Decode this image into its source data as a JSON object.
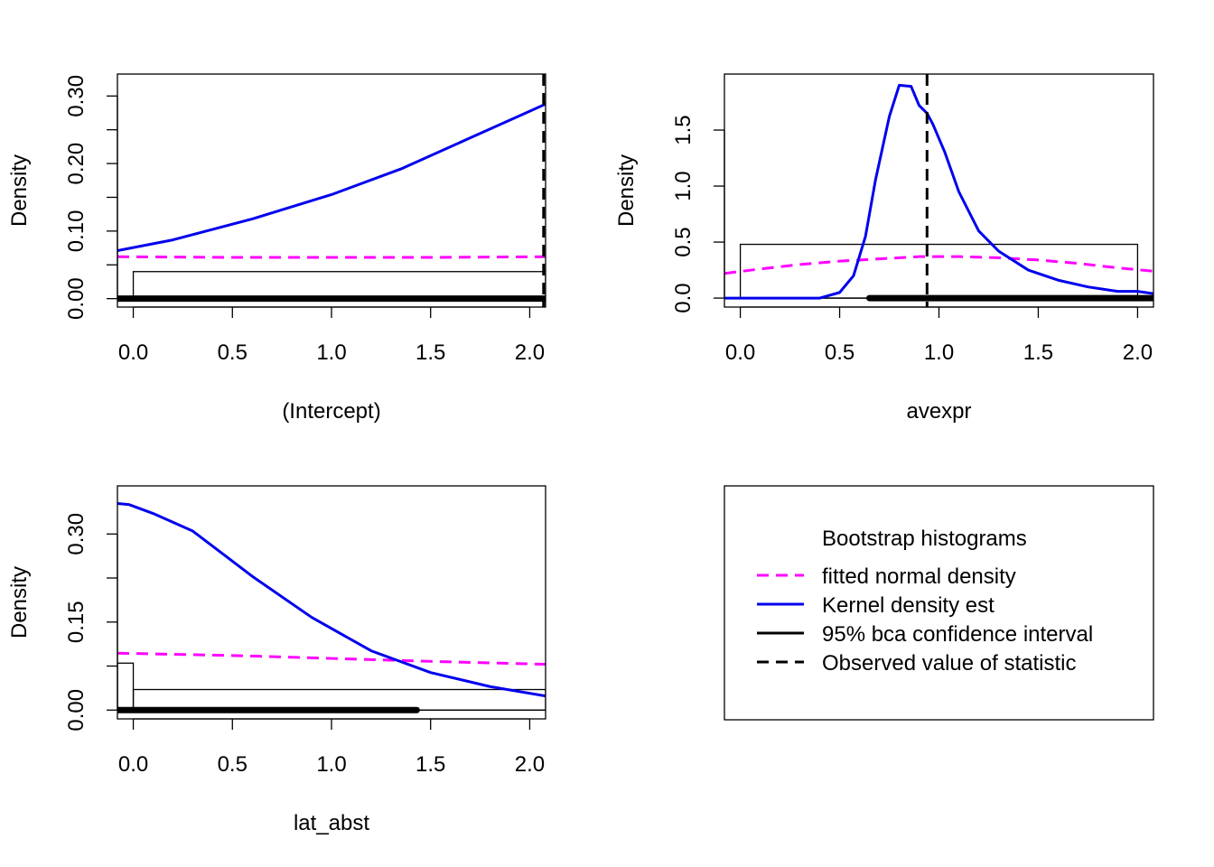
{
  "colors": {
    "normal": "#ff00ff",
    "kernel": "#0000ee",
    "ci": "#000000",
    "observed": "#000000",
    "frame": "#000000"
  },
  "chart_data": [
    {
      "type": "line",
      "xlabel": "(Intercept)",
      "ylabel": "Density",
      "xlim": [
        -0.08,
        2.08
      ],
      "ylim": [
        -0.0125,
        0.3325
      ],
      "xticks": [
        0.0,
        0.5,
        1.0,
        1.5,
        2.0
      ],
      "xtick_labels": [
        "0.0",
        "0.5",
        "1.0",
        "1.5",
        "2.0"
      ],
      "yticks": [
        0.0,
        0.05,
        0.1,
        0.15,
        0.2,
        0.25,
        0.3
      ],
      "ytick_labels": [
        "0.00",
        "",
        "0.10",
        "",
        "0.20",
        "",
        "0.30"
      ],
      "histogram": [
        {
          "x0": -0.08,
          "x1": 0.0,
          "density": 0.0
        },
        {
          "x0": 0.0,
          "x1": 2.08,
          "density": 0.04
        }
      ],
      "series": [
        {
          "name": "Kernel density est",
          "x": [
            -0.08,
            0.2,
            0.6,
            1.0,
            1.35,
            1.7,
            2.08
          ],
          "y": [
            0.071,
            0.087,
            0.118,
            0.154,
            0.192,
            0.238,
            0.288
          ]
        },
        {
          "name": "fitted normal density",
          "x": [
            -0.08,
            0.5,
            1.0,
            1.5,
            2.08
          ],
          "y": [
            0.062,
            0.061,
            0.061,
            0.061,
            0.062
          ]
        }
      ],
      "ci": [
        -0.08,
        2.08
      ],
      "observed": 2.07
    },
    {
      "type": "line",
      "xlabel": "avexpr",
      "ylabel": "Density",
      "xlim": [
        -0.08,
        2.08
      ],
      "ylim": [
        -0.08,
        2.0
      ],
      "xticks": [
        0.0,
        0.5,
        1.0,
        1.5,
        2.0
      ],
      "xtick_labels": [
        "0.0",
        "0.5",
        "1.0",
        "1.5",
        "2.0"
      ],
      "yticks": [
        0.0,
        0.5,
        1.0,
        1.5
      ],
      "ytick_labels": [
        "0.0",
        "0.5",
        "1.0",
        "1.5"
      ],
      "histogram": [
        {
          "x0": 0.0,
          "x1": 2.0,
          "density": 0.48
        }
      ],
      "series": [
        {
          "name": "Kernel density est",
          "x": [
            -0.08,
            0.2,
            0.4,
            0.5,
            0.57,
            0.63,
            0.68,
            0.75,
            0.8,
            0.86,
            0.9,
            0.94,
            0.97,
            1.03,
            1.1,
            1.2,
            1.3,
            1.45,
            1.6,
            1.75,
            1.9,
            2.0,
            2.08
          ],
          "y": [
            0.0,
            0.0,
            0.0,
            0.05,
            0.2,
            0.55,
            1.05,
            1.62,
            1.9,
            1.89,
            1.72,
            1.65,
            1.55,
            1.3,
            0.95,
            0.6,
            0.42,
            0.25,
            0.16,
            0.1,
            0.06,
            0.06,
            0.04
          ]
        },
        {
          "name": "fitted normal density",
          "x": [
            -0.08,
            0.1,
            0.3,
            0.5,
            0.7,
            0.9,
            1.1,
            1.3,
            1.5,
            1.7,
            1.9,
            2.08
          ],
          "y": [
            0.22,
            0.26,
            0.3,
            0.33,
            0.35,
            0.37,
            0.37,
            0.36,
            0.34,
            0.31,
            0.27,
            0.24
          ]
        }
      ],
      "ci": [
        0.65,
        2.08
      ],
      "observed": 0.94
    },
    {
      "type": "line",
      "xlabel": "lat_abst",
      "ylabel": "Density",
      "xlim": [
        -0.08,
        2.08
      ],
      "ylim": [
        -0.015,
        0.382
      ],
      "xticks": [
        0.0,
        0.5,
        1.0,
        1.5,
        2.0
      ],
      "xtick_labels": [
        "0.0",
        "0.5",
        "1.0",
        "1.5",
        "2.0"
      ],
      "yticks": [
        0.0,
        0.075,
        0.15,
        0.225,
        0.3
      ],
      "ytick_labels": [
        "0.00",
        "",
        "0.15",
        "",
        "0.30"
      ],
      "histogram": [
        {
          "x0": -0.08,
          "x1": 0.0,
          "density": 0.08
        },
        {
          "x0": 0.0,
          "x1": 2.08,
          "density": 0.035
        }
      ],
      "series": [
        {
          "name": "Kernel density est",
          "x": [
            -0.08,
            -0.02,
            0.1,
            0.3,
            0.6,
            0.9,
            1.2,
            1.5,
            1.8,
            2.08
          ],
          "y": [
            0.352,
            0.35,
            0.335,
            0.305,
            0.228,
            0.158,
            0.101,
            0.064,
            0.04,
            0.024
          ]
        },
        {
          "name": "fitted normal density",
          "x": [
            -0.08,
            0.5,
            1.0,
            1.5,
            2.08
          ],
          "y": [
            0.097,
            0.093,
            0.088,
            0.083,
            0.078
          ]
        }
      ],
      "ci": [
        -0.08,
        1.43
      ],
      "observed": null
    }
  ],
  "legend": {
    "title": "Bootstrap histograms",
    "items": [
      {
        "label": "fitted normal density",
        "color": "#ff00ff",
        "style": "dashed",
        "width": 3
      },
      {
        "label": "Kernel density est",
        "color": "#0000ee",
        "style": "solid",
        "width": 3
      },
      {
        "label": "95% bca confidence interval",
        "color": "#000000",
        "style": "solid",
        "width": 3
      },
      {
        "label": "Observed value of statistic",
        "color": "#000000",
        "style": "dashed",
        "width": 3
      }
    ]
  }
}
